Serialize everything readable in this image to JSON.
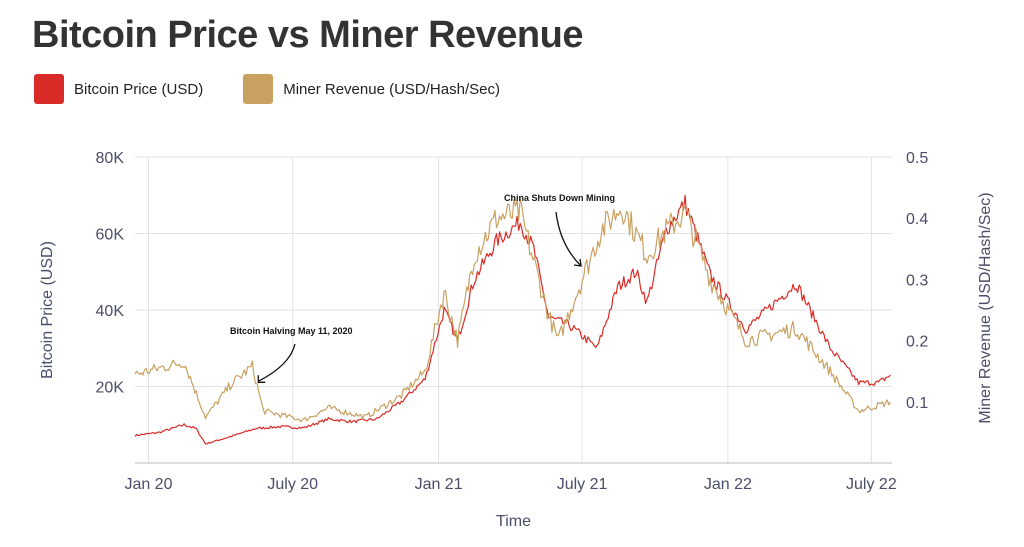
{
  "title": "Bitcoin Price vs Miner Revenue",
  "legend": [
    {
      "label": "Bitcoin Price (USD)",
      "color": "#d92b27"
    },
    {
      "label": "Miner Revenue (USD/Hash/Sec)",
      "color": "#c9a161"
    }
  ],
  "chart_data": {
    "type": "line",
    "title": "Bitcoin Price vs Miner Revenue",
    "xlabel": "Time",
    "ylabel_left": "Bitcoin Price (USD)",
    "ylabel_right": "Miner Revenue (USD/Hash/Sec)",
    "x_ticks": [
      "Jan 20",
      "July 20",
      "Jan 21",
      "July 21",
      "Jan 22",
      "July 22"
    ],
    "y_left_ticks": [
      "20K",
      "40K",
      "60K",
      "80K"
    ],
    "y_left_range": [
      0,
      80000
    ],
    "y_right_ticks": [
      "0.1",
      "0.2",
      "0.3",
      "0.4",
      "0.5"
    ],
    "y_right_range": [
      0,
      0.5
    ],
    "grid": true,
    "legend_position": "top-left",
    "annotations": [
      {
        "text": "Bitcoin Halving May 11, 2020",
        "x": "2020-05-11",
        "series": "Miner Revenue (USD/Hash/Sec)",
        "y": 0.158
      },
      {
        "text": "China Shuts Down Mining",
        "x": "2021-06-01",
        "series": "Miner Revenue (USD/Hash/Sec)",
        "y": 0.31
      }
    ],
    "series": [
      {
        "name": "Bitcoin Price (USD)",
        "axis": "left",
        "color": "#d92b27",
        "points": [
          [
            "2019-12-15",
            7200
          ],
          [
            "2020-01-15",
            8000
          ],
          [
            "2020-02-15",
            10000
          ],
          [
            "2020-03-01",
            9000
          ],
          [
            "2020-03-13",
            5000
          ],
          [
            "2020-04-15",
            7000
          ],
          [
            "2020-05-15",
            9000
          ],
          [
            "2020-06-15",
            9500
          ],
          [
            "2020-07-15",
            9200
          ],
          [
            "2020-08-15",
            11500
          ],
          [
            "2020-09-15",
            10800
          ],
          [
            "2020-10-15",
            11500
          ],
          [
            "2020-11-15",
            16000
          ],
          [
            "2020-12-15",
            22000
          ],
          [
            "2021-01-08",
            40000
          ],
          [
            "2021-01-25",
            32000
          ],
          [
            "2021-02-15",
            48000
          ],
          [
            "2021-03-15",
            58000
          ],
          [
            "2021-04-14",
            63000
          ],
          [
            "2021-05-01",
            56000
          ],
          [
            "2021-05-20",
            38000
          ],
          [
            "2021-06-15",
            36000
          ],
          [
            "2021-07-20",
            30000
          ],
          [
            "2021-08-15",
            46000
          ],
          [
            "2021-09-07",
            50000
          ],
          [
            "2021-09-21",
            42000
          ],
          [
            "2021-10-15",
            61000
          ],
          [
            "2021-11-08",
            68000
          ],
          [
            "2021-12-10",
            49000
          ],
          [
            "2022-01-24",
            35000
          ],
          [
            "2022-03-28",
            47000
          ],
          [
            "2022-05-10",
            30000
          ],
          [
            "2022-06-15",
            21000
          ],
          [
            "2022-07-10",
            21000
          ],
          [
            "2022-07-25",
            23000
          ]
        ]
      },
      {
        "name": "Miner Revenue (USD/Hash/Sec)",
        "axis": "right",
        "color": "#c9a161",
        "points": [
          [
            "2019-12-15",
            0.145
          ],
          [
            "2020-02-15",
            0.165
          ],
          [
            "2020-03-13",
            0.075
          ],
          [
            "2020-04-15",
            0.13
          ],
          [
            "2020-05-11",
            0.158
          ],
          [
            "2020-05-25",
            0.085
          ],
          [
            "2020-07-15",
            0.07
          ],
          [
            "2020-08-15",
            0.09
          ],
          [
            "2020-10-01",
            0.075
          ],
          [
            "2020-11-15",
            0.11
          ],
          [
            "2020-12-15",
            0.15
          ],
          [
            "2021-01-08",
            0.28
          ],
          [
            "2021-01-25",
            0.2
          ],
          [
            "2021-02-15",
            0.34
          ],
          [
            "2021-03-15",
            0.4
          ],
          [
            "2021-04-14",
            0.41
          ],
          [
            "2021-05-20",
            0.24
          ],
          [
            "2021-06-01",
            0.2
          ],
          [
            "2021-07-01",
            0.3
          ],
          [
            "2021-07-25",
            0.38
          ],
          [
            "2021-08-20",
            0.42
          ],
          [
            "2021-09-21",
            0.34
          ],
          [
            "2021-10-15",
            0.38
          ],
          [
            "2021-11-08",
            0.41
          ],
          [
            "2021-12-10",
            0.3
          ],
          [
            "2022-01-24",
            0.2
          ],
          [
            "2022-03-28",
            0.22
          ],
          [
            "2022-05-10",
            0.15
          ],
          [
            "2022-06-15",
            0.085
          ],
          [
            "2022-07-25",
            0.1
          ]
        ]
      }
    ]
  }
}
